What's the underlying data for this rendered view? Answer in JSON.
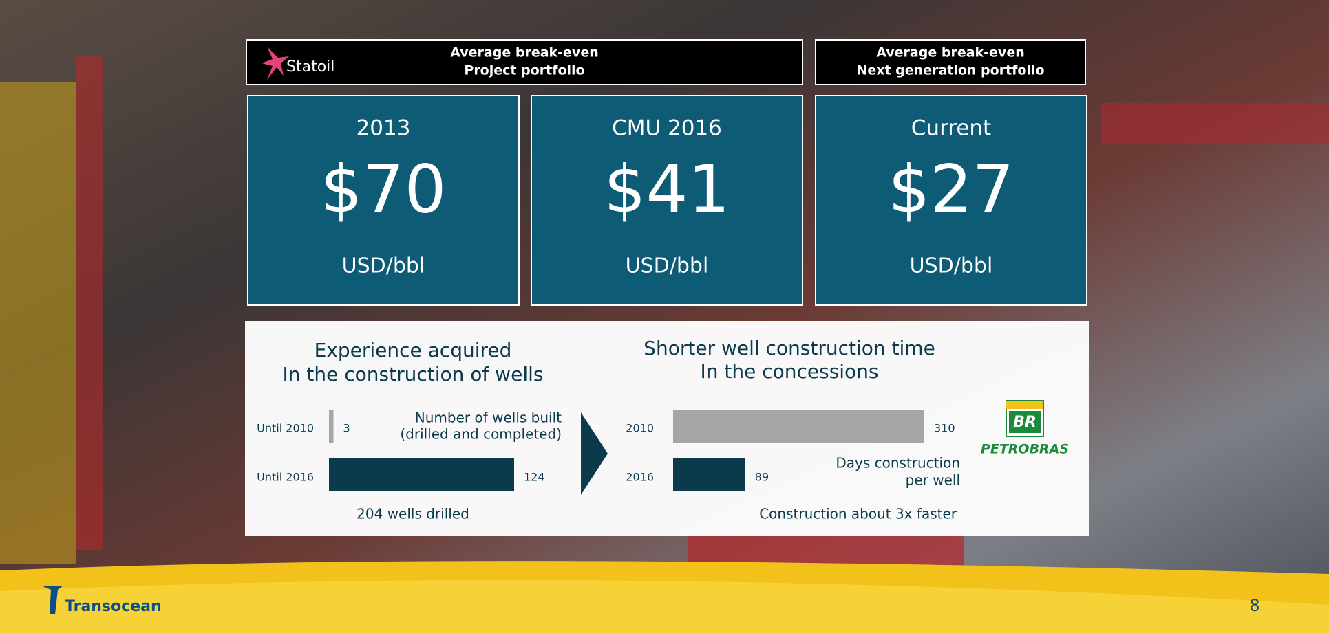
{
  "header": {
    "company": "Statoil",
    "box1": [
      "Average break-even",
      "Project portfolio"
    ],
    "box2": [
      "Average break-even",
      "Next generation portfolio"
    ]
  },
  "cards": [
    {
      "label": "2013",
      "value": "$70",
      "unit": "USD/bbl"
    },
    {
      "label": "CMU 2016",
      "value": "$41",
      "unit": "USD/bbl"
    },
    {
      "label": "Current",
      "value": "$27",
      "unit": "USD/bbl"
    }
  ],
  "chart_data": [
    {
      "type": "bar",
      "orientation": "horizontal",
      "title": [
        "Experience acquired",
        "In the construction of wells"
      ],
      "categories": [
        "Until 2010",
        "Until 2016"
      ],
      "values": [
        3,
        124
      ],
      "colors": [
        "#a6a6a6",
        "#0b3a4d"
      ],
      "xlim": [
        0,
        124
      ],
      "annotation": [
        "Number of wells built",
        "(drilled and completed)"
      ],
      "footnote": "204 wells drilled"
    },
    {
      "type": "bar",
      "orientation": "horizontal",
      "title": [
        "Shorter well construction time",
        "In the concessions"
      ],
      "categories": [
        "2010",
        "2016"
      ],
      "values": [
        310,
        89
      ],
      "colors": [
        "#a6a6a6",
        "#0b3a4d"
      ],
      "xlim": [
        0,
        310
      ],
      "annotation": [
        "Days construction",
        "per well"
      ],
      "footnote": "Construction about 3x faster"
    }
  ],
  "logos": {
    "petrobras_mark": "BR",
    "petrobras": "PETROBRAS",
    "transocean": "Transocean"
  },
  "page_number": "8"
}
